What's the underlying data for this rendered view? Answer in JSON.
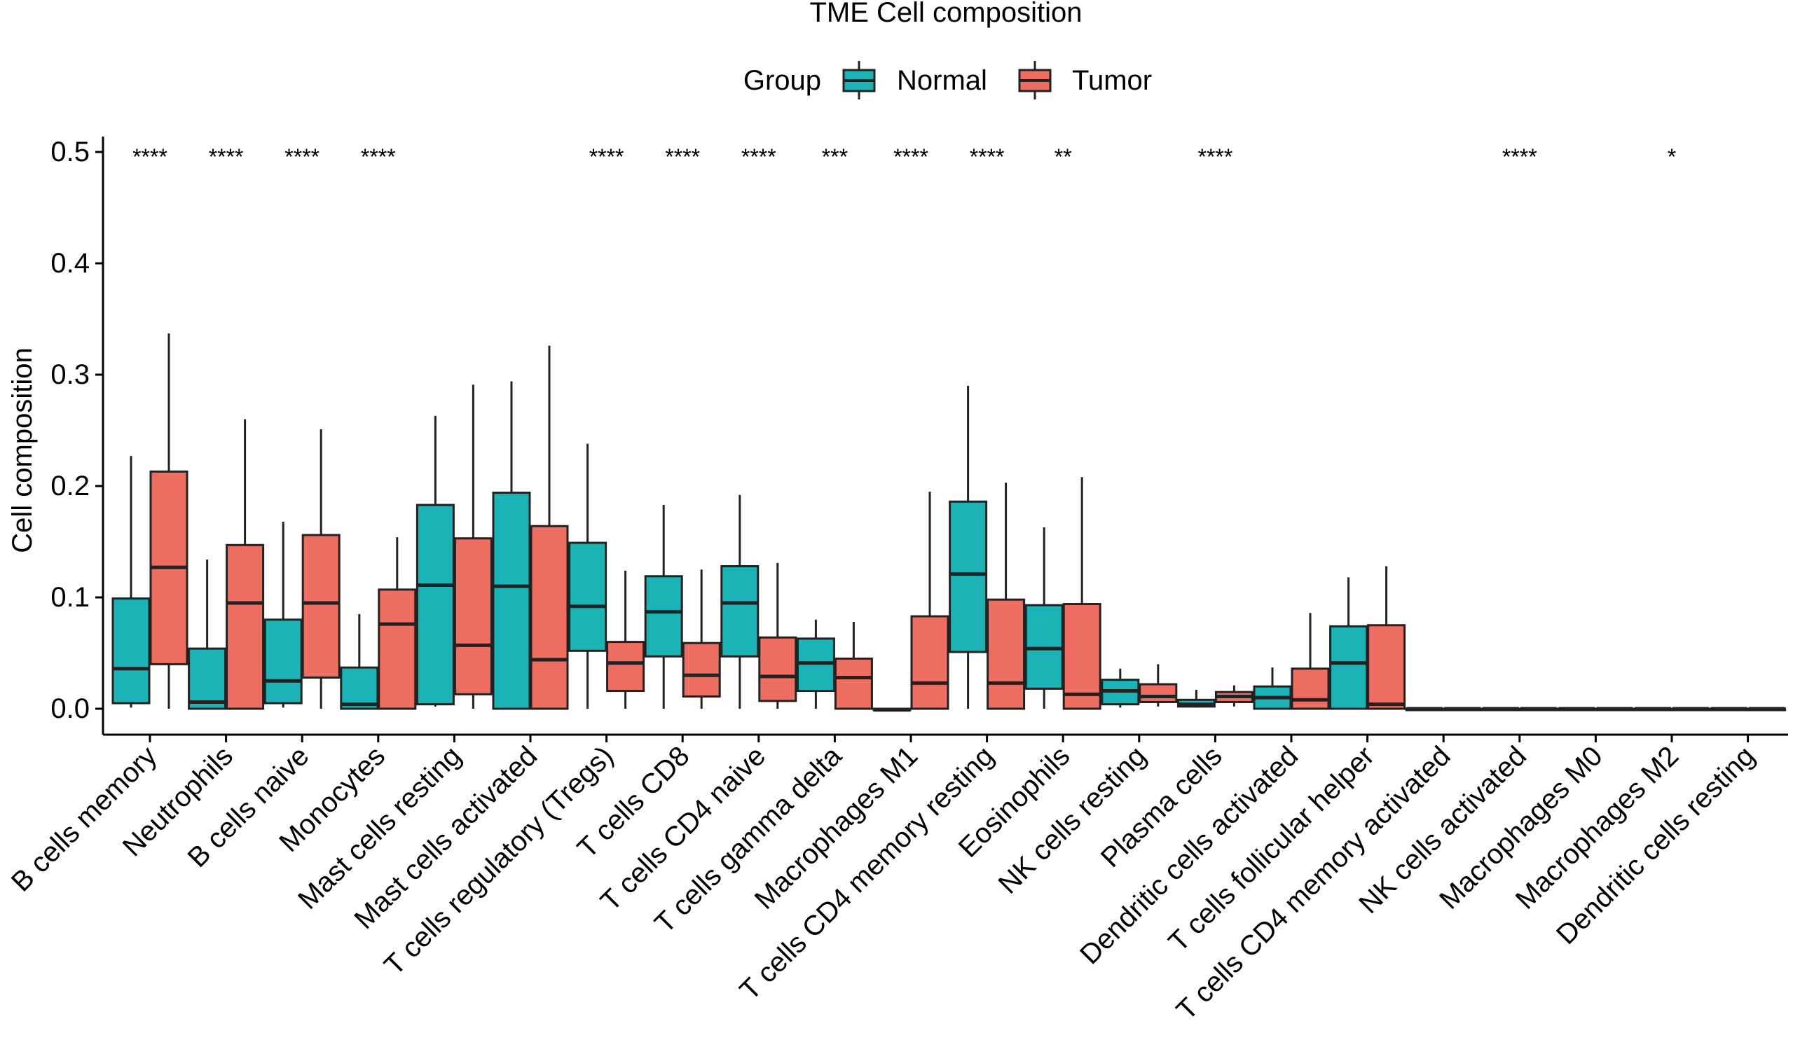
{
  "chart_data": {
    "type": "boxplot",
    "title": "TME Cell composition",
    "ylabel": "Cell composition",
    "xlabel": "",
    "ylim": [
      -0.025,
      0.5
    ],
    "yticks": [
      "0.0",
      "0.1",
      "0.2",
      "0.3",
      "0.4",
      "0.5"
    ],
    "legend": {
      "title": "Group",
      "position": "top",
      "entries": [
        {
          "name": "Normal",
          "color": "#1BB3B5"
        },
        {
          "name": "Tumor",
          "color": "#EE6E62"
        }
      ]
    },
    "categories": [
      "B cells memory",
      "Neutrophils",
      "B cells naive",
      "Monocytes",
      "Mast cells resting",
      "Mast cells activated",
      "T cells regulatory (Tregs)",
      "T cells CD8",
      "T cells CD4 naive",
      "T cells gamma delta",
      "Macrophages M1",
      "T cells CD4 memory resting",
      "Eosinophils",
      "NK cells resting",
      "Plasma cells",
      "Dendritic cells activated",
      "T cells follicular helper",
      "T cells CD4 memory activated",
      "NK cells activated",
      "Macrophages M0",
      "Macrophages M2",
      "Dendritic cells resting"
    ],
    "significance": [
      "****",
      "****",
      "****",
      "****",
      "",
      "",
      "****",
      "****",
      "****",
      "***",
      "****",
      "****",
      "**",
      "",
      "****",
      "",
      "",
      "",
      "****",
      "",
      "*",
      ""
    ],
    "series": [
      {
        "name": "Normal",
        "color": "#1BB3B5",
        "boxes": [
          {
            "min": 0.001,
            "q1": 0.005,
            "median": 0.036,
            "q3": 0.099,
            "max": 0.227
          },
          {
            "min": 0.0,
            "q1": 0.0,
            "median": 0.006,
            "q3": 0.054,
            "max": 0.134
          },
          {
            "min": 0.001,
            "q1": 0.005,
            "median": 0.025,
            "q3": 0.08,
            "max": 0.168
          },
          {
            "min": 0.0,
            "q1": 0.0,
            "median": 0.004,
            "q3": 0.037,
            "max": 0.085
          },
          {
            "min": 0.002,
            "q1": 0.004,
            "median": 0.111,
            "q3": 0.183,
            "max": 0.263
          },
          {
            "min": 0.0,
            "q1": 0.0,
            "median": 0.11,
            "q3": 0.194,
            "max": 0.294
          },
          {
            "min": 0.0,
            "q1": 0.052,
            "median": 0.092,
            "q3": 0.149,
            "max": 0.238
          },
          {
            "min": 0.0,
            "q1": 0.047,
            "median": 0.087,
            "q3": 0.119,
            "max": 0.183
          },
          {
            "min": 0.0,
            "q1": 0.047,
            "median": 0.095,
            "q3": 0.128,
            "max": 0.192
          },
          {
            "min": 0.0,
            "q1": 0.016,
            "median": 0.041,
            "q3": 0.063,
            "max": 0.08
          },
          {
            "min": -0.001,
            "q1": -0.001,
            "median": -0.001,
            "q3": 0.0,
            "max": 0.0
          },
          {
            "min": 0.0,
            "q1": 0.051,
            "median": 0.121,
            "q3": 0.186,
            "max": 0.29
          },
          {
            "min": 0.0,
            "q1": 0.018,
            "median": 0.054,
            "q3": 0.093,
            "max": 0.163
          },
          {
            "min": 0.001,
            "q1": 0.004,
            "median": 0.016,
            "q3": 0.026,
            "max": 0.036
          },
          {
            "min": 0.001,
            "q1": 0.002,
            "median": 0.004,
            "q3": 0.008,
            "max": 0.017
          },
          {
            "min": 0.0,
            "q1": 0.0,
            "median": 0.01,
            "q3": 0.02,
            "max": 0.037
          },
          {
            "min": 0.0,
            "q1": 0.0,
            "median": 0.041,
            "q3": 0.074,
            "max": 0.118
          },
          {
            "min": 0.0,
            "q1": 0.0,
            "median": 0.0,
            "q3": 0.0,
            "max": 0.0
          },
          {
            "min": 0.0,
            "q1": 0.0,
            "median": 0.0,
            "q3": 0.0,
            "max": 0.0
          },
          {
            "min": 0.0,
            "q1": 0.0,
            "median": 0.0,
            "q3": 0.0,
            "max": 0.0
          },
          {
            "min": 0.0,
            "q1": 0.0,
            "median": 0.0,
            "q3": 0.0,
            "max": 0.0
          },
          {
            "min": 0.0,
            "q1": 0.0,
            "median": 0.0,
            "q3": 0.0,
            "max": 0.0
          }
        ]
      },
      {
        "name": "Tumor",
        "color": "#EE6E62",
        "boxes": [
          {
            "min": 0.0,
            "q1": 0.04,
            "median": 0.127,
            "q3": 0.213,
            "max": 0.337
          },
          {
            "min": 0.0,
            "q1": 0.0,
            "median": 0.095,
            "q3": 0.147,
            "max": 0.26
          },
          {
            "min": 0.0,
            "q1": 0.028,
            "median": 0.095,
            "q3": 0.156,
            "max": 0.251
          },
          {
            "min": 0.0,
            "q1": 0.0,
            "median": 0.076,
            "q3": 0.107,
            "max": 0.154
          },
          {
            "min": 0.0,
            "q1": 0.013,
            "median": 0.057,
            "q3": 0.153,
            "max": 0.291
          },
          {
            "min": 0.0,
            "q1": 0.0,
            "median": 0.044,
            "q3": 0.164,
            "max": 0.326
          },
          {
            "min": 0.0,
            "q1": 0.016,
            "median": 0.041,
            "q3": 0.06,
            "max": 0.124
          },
          {
            "min": 0.0,
            "q1": 0.011,
            "median": 0.03,
            "q3": 0.059,
            "max": 0.125
          },
          {
            "min": 0.0,
            "q1": 0.007,
            "median": 0.029,
            "q3": 0.064,
            "max": 0.131
          },
          {
            "min": 0.0,
            "q1": 0.0,
            "median": 0.028,
            "q3": 0.045,
            "max": 0.078
          },
          {
            "min": 0.0,
            "q1": 0.0,
            "median": 0.023,
            "q3": 0.083,
            "max": 0.195
          },
          {
            "min": 0.0,
            "q1": 0.0,
            "median": 0.023,
            "q3": 0.098,
            "max": 0.203
          },
          {
            "min": 0.0,
            "q1": 0.0,
            "median": 0.013,
            "q3": 0.094,
            "max": 0.208
          },
          {
            "min": 0.002,
            "q1": 0.006,
            "median": 0.011,
            "q3": 0.022,
            "max": 0.04
          },
          {
            "min": 0.002,
            "q1": 0.006,
            "median": 0.011,
            "q3": 0.015,
            "max": 0.021
          },
          {
            "min": 0.0,
            "q1": 0.0,
            "median": 0.008,
            "q3": 0.036,
            "max": 0.086
          },
          {
            "min": 0.0,
            "q1": 0.0,
            "median": 0.004,
            "q3": 0.075,
            "max": 0.128
          },
          {
            "min": 0.0,
            "q1": 0.0,
            "median": 0.0,
            "q3": 0.0,
            "max": 0.0
          },
          {
            "min": 0.0,
            "q1": 0.0,
            "median": 0.0,
            "q3": 0.0,
            "max": 0.0
          },
          {
            "min": 0.0,
            "q1": 0.0,
            "median": 0.0,
            "q3": 0.0,
            "max": 0.0
          },
          {
            "min": 0.0,
            "q1": 0.0,
            "median": 0.0,
            "q3": 0.0,
            "max": 0.0
          },
          {
            "min": 0.0,
            "q1": 0.0,
            "median": 0.0,
            "q3": 0.0,
            "max": 0.0
          }
        ]
      }
    ]
  }
}
